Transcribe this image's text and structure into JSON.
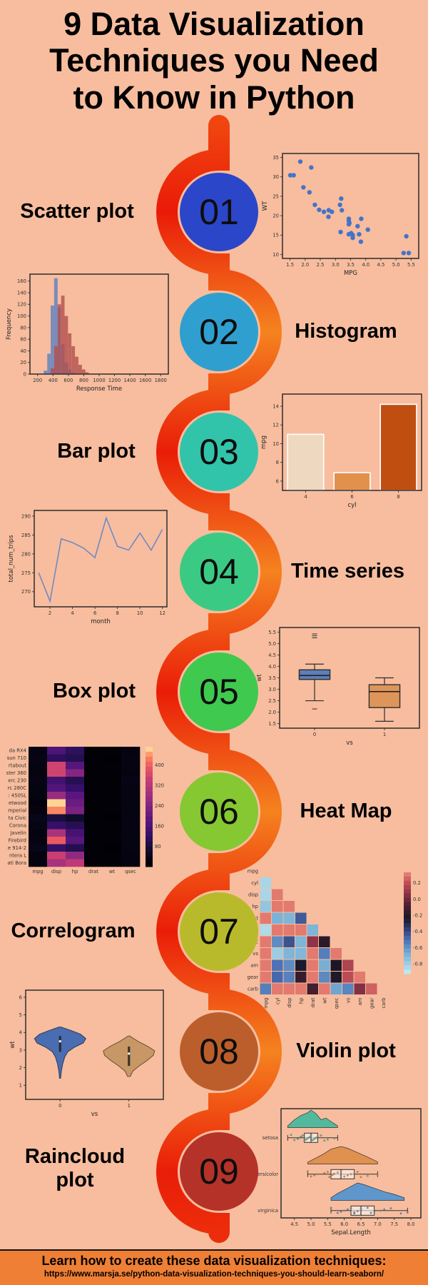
{
  "page": {
    "bg": "#f7bd9e",
    "title_lines": [
      "9 Data Visualization",
      "Techniques you Need",
      "to Know in Python"
    ]
  },
  "ribbon": {
    "red": "#ea1d08",
    "orange": "#f5821f"
  },
  "sections": [
    {
      "num": "01",
      "label": "Scatter plot",
      "circle_color": "#2b46c8"
    },
    {
      "num": "02",
      "label": "Histogram",
      "circle_color": "#2f9fd0"
    },
    {
      "num": "03",
      "label": "Bar plot",
      "circle_color": "#32c3ab"
    },
    {
      "num": "04",
      "label": "Time series",
      "circle_color": "#3bca84"
    },
    {
      "num": "05",
      "label": "Box plot",
      "circle_color": "#3fc94f"
    },
    {
      "num": "06",
      "label": "Heat Map",
      "circle_color": "#85c831"
    },
    {
      "num": "07",
      "label": "Correlogram",
      "circle_color": "#b9ba2b"
    },
    {
      "num": "08",
      "label": "Violin plot",
      "circle_color": "#bb5e2c"
    },
    {
      "num": "09",
      "label": "Raincloud plot",
      "circle_color": "#b53229"
    }
  ],
  "footer": {
    "bg": "#ef7f35",
    "heading": "Learn how to create these data visualization techniques:",
    "url": "https://www.marsja.se/python-data-visualization-techniques-you-should-learn-seaborn/"
  },
  "chart_data": [
    {
      "name": "Scatter plot",
      "type": "scatter",
      "xlabel": "MPG",
      "ylabel": "WT",
      "xlim": [
        1.25,
        5.75
      ],
      "ylim": [
        9,
        36
      ],
      "xticks": [
        "1.5",
        "2.0",
        "2.5",
        "3.0",
        "3.5",
        "4.0",
        "4.5",
        "5.0",
        "5.5"
      ],
      "yticks": [
        "10",
        "15",
        "20",
        "25",
        "30",
        "35"
      ],
      "dot_color": "#4673c8",
      "points": [
        [
          2.62,
          21
        ],
        [
          2.88,
          21
        ],
        [
          2.32,
          22.8
        ],
        [
          3.21,
          21.4
        ],
        [
          3.44,
          18.7
        ],
        [
          3.46,
          18.1
        ],
        [
          3.57,
          14.3
        ],
        [
          3.19,
          24.4
        ],
        [
          3.15,
          22.8
        ],
        [
          3.44,
          19.2
        ],
        [
          3.44,
          17.8
        ],
        [
          4.07,
          16.4
        ],
        [
          3.73,
          17.3
        ],
        [
          3.78,
          15.2
        ],
        [
          5.25,
          10.4
        ],
        [
          5.42,
          10.4
        ],
        [
          5.34,
          14.7
        ],
        [
          2.2,
          32.4
        ],
        [
          1.62,
          30.4
        ],
        [
          1.84,
          33.9
        ],
        [
          2.46,
          21.5
        ],
        [
          3.52,
          15.5
        ],
        [
          3.44,
          15.2
        ],
        [
          3.84,
          13.3
        ],
        [
          3.85,
          19.2
        ],
        [
          1.94,
          27.3
        ],
        [
          2.14,
          26
        ],
        [
          1.51,
          30.4
        ],
        [
          3.17,
          15.8
        ],
        [
          2.77,
          19.7
        ],
        [
          3.57,
          15
        ],
        [
          2.78,
          21.4
        ]
      ]
    },
    {
      "name": "Histogram",
      "type": "histogram",
      "xlabel": "Response Time",
      "ylabel": "Frequency",
      "xlim": [
        100,
        1900
      ],
      "ylim": [
        0,
        172
      ],
      "xticks": [
        "200",
        "400",
        "600",
        "800",
        "1000",
        "1200",
        "1400",
        "1600",
        "1800"
      ],
      "yticks": [
        "0",
        "20",
        "40",
        "60",
        "80",
        "100",
        "120",
        "140",
        "160"
      ],
      "series": [
        {
          "name": "group-blue",
          "color": "#7289bd",
          "opacity": 0.95,
          "bin_start": 280,
          "bin_width": 45,
          "counts": [
            6,
            35,
            118,
            165,
            115,
            52,
            20,
            8,
            3
          ]
        },
        {
          "name": "group-red",
          "color": "#b14f4e",
          "opacity": 0.8,
          "bin_start": 370,
          "bin_width": 45,
          "counts": [
            10,
            48,
            120,
            135,
            100,
            70,
            48,
            30,
            16,
            8,
            3
          ]
        }
      ]
    },
    {
      "name": "Bar plot",
      "type": "bar",
      "xlabel": "cyl",
      "ylabel": "mpg",
      "categories": [
        "4",
        "6",
        "8"
      ],
      "values": [
        11,
        6.9,
        14.2
      ],
      "colors": [
        "#eed8bf",
        "#e2914d",
        "#c04e11"
      ],
      "bar_edge": "#ffffff",
      "ylim": [
        5,
        15.3
      ],
      "yticks": [
        "6",
        "8",
        "10",
        "12",
        "14"
      ]
    },
    {
      "name": "Time series",
      "type": "line",
      "xlabel": "month",
      "ylabel": "total_num_trips",
      "xlim": [
        0.6,
        12.4
      ],
      "ylim": [
        266,
        291.5
      ],
      "xticks": [
        "2",
        "4",
        "6",
        "8",
        "10",
        "12"
      ],
      "yticks": [
        "270",
        "275",
        "280",
        "285",
        "290"
      ],
      "color": "#7289c4",
      "x": [
        1,
        2,
        3,
        4,
        5,
        6,
        7,
        8,
        9,
        10,
        11,
        12
      ],
      "y": [
        275,
        267.5,
        284,
        283,
        281.5,
        279,
        289.5,
        282,
        281,
        285.5,
        281,
        286.5
      ]
    },
    {
      "name": "Box plot",
      "type": "box",
      "xlabel": "vs",
      "ylabel": "wt",
      "categories": [
        "0",
        "1"
      ],
      "ylim": [
        1.3,
        5.7
      ],
      "yticks": [
        "1.5",
        "2.0",
        "2.5",
        "3.0",
        "3.5",
        "4.0",
        "4.5",
        "5.0",
        "5.5"
      ],
      "boxes": [
        {
          "color": "#5c7fb8",
          "lo": 2.5,
          "q1": 3.43,
          "med": 3.6,
          "q3": 3.85,
          "hi": 4.1,
          "outliers": [
            5.25,
            5.34,
            5.42,
            2.14
          ]
        },
        {
          "color": "#dd9559",
          "lo": 1.6,
          "q1": 2.2,
          "med": 2.9,
          "q3": 3.2,
          "hi": 3.5,
          "outliers": []
        }
      ]
    },
    {
      "name": "Heat Map",
      "type": "heatmap",
      "rows": [
        "da RX4",
        "sun 710",
        "rtabout",
        "ster 360",
        "erc 230",
        "rc 280C",
        ": 450SL",
        "etwood",
        "mperial",
        "ta Civic",
        "Corona",
        "Javelin",
        "Firebird",
        "e 914-2",
        "ntera L",
        "ati Bora"
      ],
      "cols": [
        "mpg",
        "disp",
        "hp",
        "drat",
        "wt",
        "qsec"
      ],
      "vmin": 0,
      "vmax": 472,
      "colorbar_ticks": [
        "400",
        "320",
        "240",
        "160",
        "80"
      ],
      "values": [
        [
          21,
          160,
          110,
          3.9,
          2.62,
          16.46
        ],
        [
          22.8,
          108,
          93,
          3.85,
          2.32,
          18.61
        ],
        [
          18.7,
          360,
          175,
          3.15,
          3.44,
          17.02
        ],
        [
          14.3,
          360,
          245,
          3.21,
          3.57,
          15.84
        ],
        [
          22.8,
          140.8,
          95,
          3.92,
          3.15,
          22.9
        ],
        [
          17.8,
          167.6,
          123,
          3.92,
          3.44,
          18.9
        ],
        [
          17.3,
          275.8,
          180,
          3.07,
          3.73,
          17.6
        ],
        [
          10.4,
          472,
          205,
          2.93,
          5.25,
          17.98
        ],
        [
          14.7,
          440,
          230,
          3.23,
          5.34,
          17.42
        ],
        [
          30.4,
          75.7,
          52,
          4.93,
          1.62,
          18.52
        ],
        [
          21.5,
          120.1,
          97,
          3.7,
          2.47,
          20.01
        ],
        [
          15.2,
          304,
          150,
          3.15,
          3.44,
          17.3
        ],
        [
          19.2,
          400,
          175,
          3.08,
          3.85,
          17.05
        ],
        [
          26,
          120.3,
          91,
          4.43,
          2.14,
          16.7
        ],
        [
          15.8,
          351,
          264,
          4.22,
          3.17,
          14.5
        ],
        [
          15,
          301,
          335,
          3.54,
          3.77,
          14.6
        ]
      ]
    },
    {
      "name": "Correlogram",
      "type": "corr",
      "labels": [
        "mpg",
        "cyl",
        "disp",
        "hp",
        "drat",
        "wt",
        "qsec",
        "vs",
        "am",
        "gear",
        "carb"
      ],
      "vmin": -0.92,
      "vmax": 0.33,
      "colorbar_ticks": [
        "0.2",
        "0.0",
        "-0.2",
        "-0.4",
        "-0.6",
        "-0.8"
      ],
      "matrix": [
        [
          -0.85
        ],
        [
          -0.85,
          0.9
        ],
        [
          -0.78,
          0.83,
          0.79
        ],
        [
          0.68,
          -0.7,
          -0.71,
          -0.45
        ],
        [
          -0.87,
          0.78,
          0.89,
          0.66,
          -0.71
        ],
        [
          0.42,
          -0.59,
          -0.43,
          -0.71,
          0.09,
          -0.17
        ],
        [
          0.66,
          -0.81,
          -0.71,
          -0.72,
          0.44,
          -0.55,
          0.74
        ],
        [
          0.6,
          -0.52,
          -0.59,
          -0.24,
          0.71,
          -0.69,
          -0.23,
          0.17
        ],
        [
          0.48,
          -0.49,
          -0.56,
          -0.13,
          0.7,
          -0.58,
          -0.21,
          0.21,
          0.79
        ],
        [
          -0.55,
          0.53,
          0.39,
          0.75,
          -0.09,
          0.43,
          -0.66,
          -0.57,
          0.06,
          0.27
        ]
      ]
    },
    {
      "name": "Violin plot",
      "type": "violin",
      "xlabel": "vs",
      "ylabel": "wt",
      "categories": [
        "0",
        "1"
      ],
      "ylim": [
        0.2,
        6.4
      ],
      "yticks": [
        "1",
        "2",
        "3",
        "4",
        "5",
        "6"
      ],
      "max_halfwidth": 36,
      "violins": [
        {
          "color": "#4a6cb0",
          "edge": "#2a3a57",
          "box": [
            2.9,
            3.8
          ],
          "med": 3.5,
          "profile": [
            [
              4.3,
              0.05
            ],
            [
              4.1,
              0.45
            ],
            [
              3.9,
              0.8
            ],
            [
              3.65,
              1.0
            ],
            [
              3.4,
              0.9
            ],
            [
              3.15,
              0.55
            ],
            [
              2.9,
              0.3
            ],
            [
              2.6,
              0.18
            ],
            [
              2.2,
              0.1
            ],
            [
              1.8,
              0.05
            ],
            [
              1.4,
              0.02
            ]
          ]
        },
        {
          "color": "#c79766",
          "edge": "#6b4e30",
          "box": [
            2.1,
            3.2
          ],
          "med": 2.8,
          "profile": [
            [
              3.8,
              0.03
            ],
            [
              3.5,
              0.35
            ],
            [
              3.2,
              0.75
            ],
            [
              2.95,
              1.0
            ],
            [
              2.7,
              0.95
            ],
            [
              2.4,
              0.7
            ],
            [
              2.1,
              0.4
            ],
            [
              1.8,
              0.15
            ],
            [
              1.5,
              0.05
            ]
          ]
        }
      ]
    },
    {
      "name": "Raincloud plot",
      "type": "raincloud",
      "xlabel": "Sepal.Length",
      "xlim": [
        4.1,
        8.3
      ],
      "xticks": [
        "4.5",
        "5.0",
        "5.5",
        "6.0",
        "6.5",
        "7.0",
        "7.5",
        "8.0"
      ],
      "rows": [
        {
          "label": "setosa",
          "color": "#52b99c",
          "box": {
            "lo": 4.3,
            "q1": 4.8,
            "med": 5.0,
            "q3": 5.2,
            "hi": 5.8
          },
          "density": [
            [
              4.3,
              0.1
            ],
            [
              4.5,
              0.45
            ],
            [
              4.7,
              0.7
            ],
            [
              4.9,
              0.85
            ],
            [
              5.0,
              1.0
            ],
            [
              5.15,
              0.8
            ],
            [
              5.3,
              0.45
            ],
            [
              5.45,
              0.55
            ],
            [
              5.6,
              0.35
            ],
            [
              5.8,
              0.1
            ]
          ],
          "points": [
            4.4,
            4.5,
            4.6,
            4.65,
            4.7,
            4.75,
            4.8,
            4.85,
            4.9,
            4.95,
            5.0,
            5.0,
            5.05,
            5.1,
            5.15,
            5.2,
            5.3,
            5.4,
            5.5,
            5.7
          ]
        },
        {
          "label": "versicolor",
          "color": "#e0914f",
          "box": {
            "lo": 4.9,
            "q1": 5.6,
            "med": 5.9,
            "q3": 6.3,
            "hi": 7.0
          },
          "density": [
            [
              4.9,
              0.1
            ],
            [
              5.1,
              0.3
            ],
            [
              5.4,
              0.6
            ],
            [
              5.6,
              0.85
            ],
            [
              5.9,
              1.0
            ],
            [
              6.1,
              0.9
            ],
            [
              6.4,
              0.65
            ],
            [
              6.7,
              0.4
            ],
            [
              7.0,
              0.12
            ]
          ],
          "points": [
            4.9,
            5.0,
            5.1,
            5.2,
            5.4,
            5.5,
            5.55,
            5.6,
            5.65,
            5.7,
            5.8,
            5.9,
            6.0,
            6.1,
            6.2,
            6.3,
            6.4,
            6.5,
            6.7,
            7.0
          ]
        },
        {
          "label": "virginica",
          "color": "#5f97cc",
          "box": {
            "lo": 5.6,
            "q1": 6.2,
            "med": 6.5,
            "q3": 6.9,
            "hi": 7.9
          },
          "density": [
            [
              5.6,
              0.15
            ],
            [
              5.8,
              0.4
            ],
            [
              6.1,
              0.7
            ],
            [
              6.4,
              1.0
            ],
            [
              6.6,
              0.9
            ],
            [
              6.9,
              0.7
            ],
            [
              7.2,
              0.5
            ],
            [
              7.5,
              0.35
            ],
            [
              7.8,
              0.15
            ]
          ],
          "points": [
            5.6,
            5.8,
            5.9,
            6.0,
            6.1,
            6.2,
            6.3,
            6.3,
            6.4,
            6.5,
            6.5,
            6.7,
            6.8,
            6.9,
            7.1,
            7.2,
            7.4,
            7.7,
            7.9
          ]
        }
      ]
    }
  ]
}
